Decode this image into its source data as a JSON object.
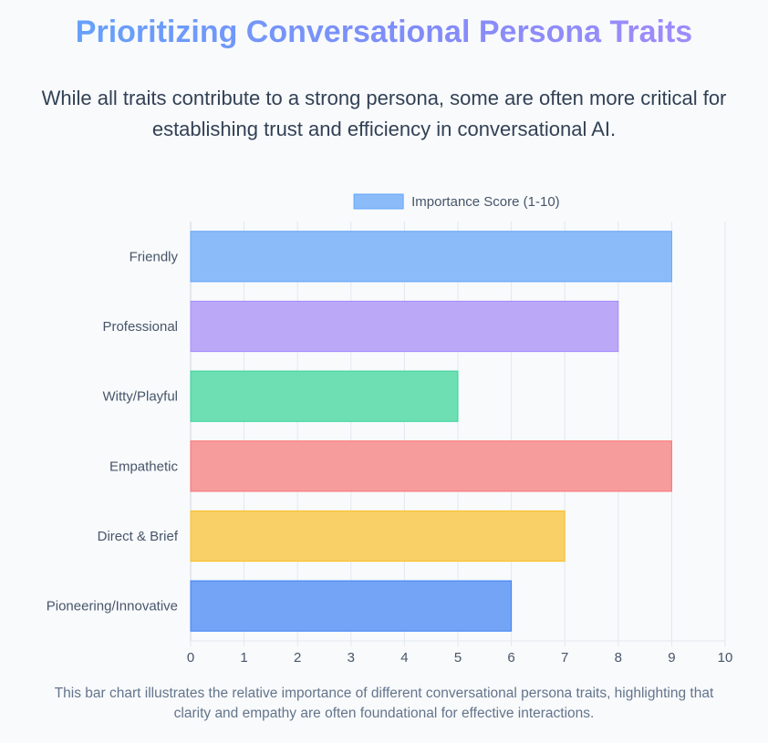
{
  "header": {
    "title": "Prioritizing Conversational Persona Traits",
    "subtitle": "While all traits contribute to a strong persona, some are often more critical for establishing trust and efficiency in conversational AI."
  },
  "footer": {
    "caption": "This bar chart illustrates the relative importance of different conversational persona traits, highlighting that clarity and empathy are often foundational for effective interactions."
  },
  "chart_data": {
    "type": "bar",
    "orientation": "horizontal",
    "categories": [
      "Friendly",
      "Professional",
      "Witty/Playful",
      "Empathetic",
      "Direct & Brief",
      "Pioneering/Innovative"
    ],
    "series": [
      {
        "name": "Importance Score (1-10)",
        "values": [
          9,
          8,
          5,
          9,
          7,
          6
        ]
      }
    ],
    "bar_colors": [
      "#8bbcf9",
      "#bba9f8",
      "#6ddfb2",
      "#f79c9c",
      "#f8d067",
      "#74a4f5"
    ],
    "bar_border_colors": [
      "#60a5fa",
      "#a78bfa",
      "#34d399",
      "#f87171",
      "#fbbf24",
      "#3b82f6"
    ],
    "legend_color": "#8bbcf9",
    "xlim": [
      0,
      10
    ],
    "xticks": [
      0,
      1,
      2,
      3,
      4,
      5,
      6,
      7,
      8,
      9,
      10
    ],
    "grid": true,
    "legend_position": "top-center",
    "xlabel": "",
    "ylabel": ""
  }
}
